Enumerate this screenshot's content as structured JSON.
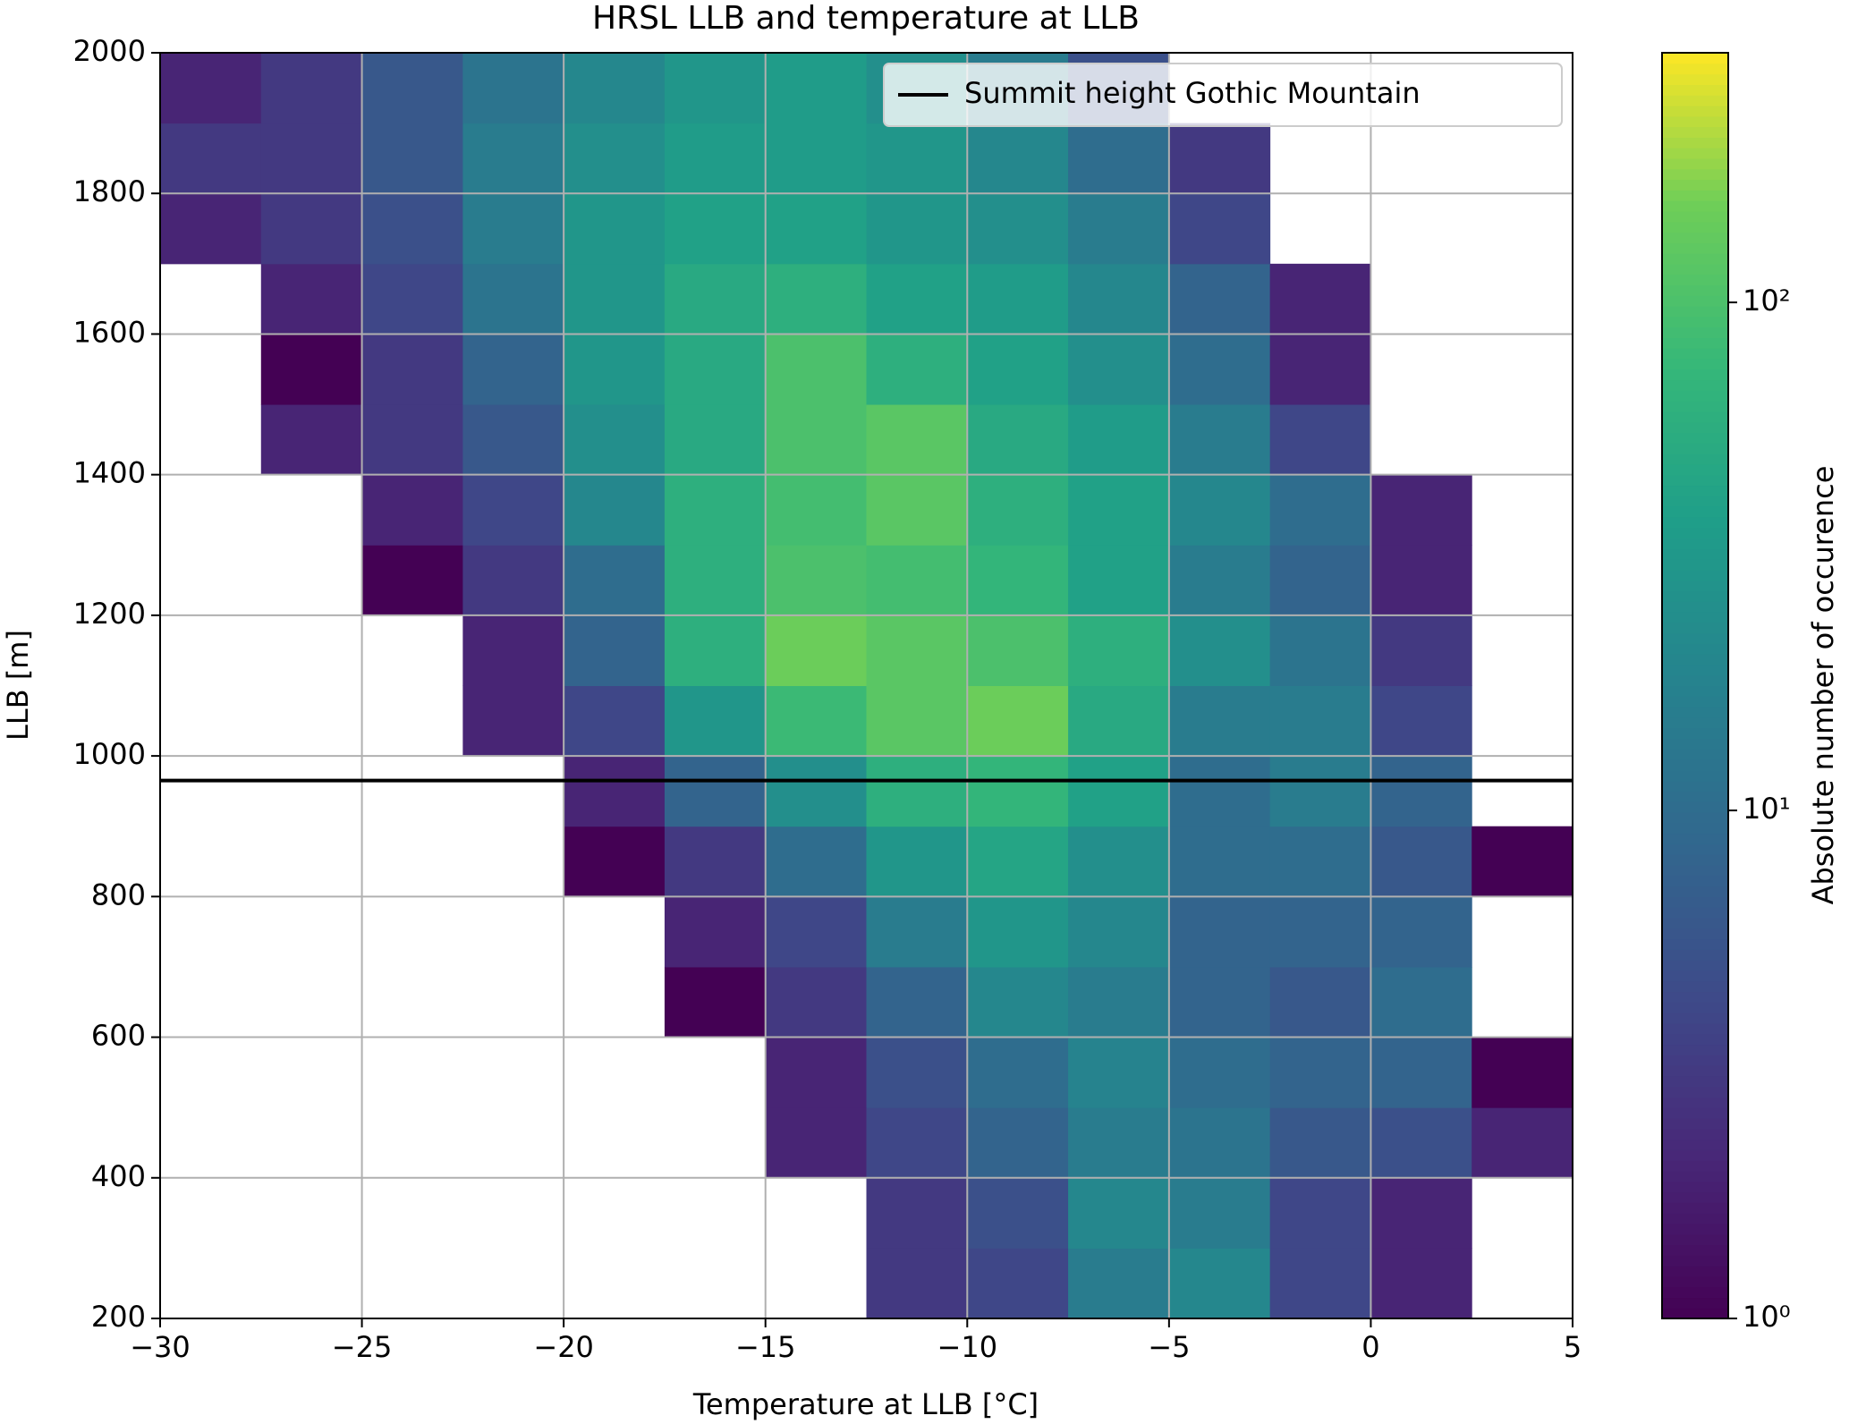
{
  "chart_data": {
    "type": "heatmap",
    "title": "HRSL LLB and temperature at LLB",
    "xlabel": "Temperature at LLB [°C]",
    "ylabel": "LLB [m]",
    "colorbar_label": "Absolute number of occurence",
    "colormap": "viridis",
    "color_log": true,
    "clim": [
      1,
      310
    ],
    "cticks": [
      {
        "value": 1,
        "label": "10⁰"
      },
      {
        "value": 10,
        "label": "10¹"
      },
      {
        "value": 100,
        "label": "10²"
      }
    ],
    "xlim": [
      -30,
      5
    ],
    "ylim": [
      200,
      2000
    ],
    "xticks": [
      {
        "value": -30,
        "label": "−30"
      },
      {
        "value": -25,
        "label": "−25"
      },
      {
        "value": -20,
        "label": "−20"
      },
      {
        "value": -15,
        "label": "−15"
      },
      {
        "value": -10,
        "label": "−10"
      },
      {
        "value": -5,
        "label": "−5"
      },
      0,
      5
    ],
    "yticks": [
      200,
      400,
      600,
      800,
      1000,
      1200,
      1400,
      1600,
      1800,
      2000
    ],
    "grid": true,
    "legend": "upper right",
    "x_bins": [
      -30,
      -27.5,
      -25,
      -22.5,
      -20,
      -17.5,
      -15,
      -12.5,
      -10,
      -7.5,
      -5,
      -2.5,
      0,
      2.5,
      5
    ],
    "y_bins": [
      200,
      300,
      400,
      500,
      600,
      700,
      800,
      900,
      1000,
      1100,
      1200,
      1300,
      1400,
      1500,
      1600,
      1700,
      1800,
      1900,
      2000
    ],
    "values": [
      [
        null,
        null,
        null,
        null,
        null,
        null,
        null,
        3,
        4,
        15,
        20,
        4,
        2,
        null
      ],
      [
        null,
        null,
        null,
        null,
        null,
        null,
        null,
        3,
        5,
        20,
        15,
        4,
        2,
        null
      ],
      [
        null,
        null,
        null,
        null,
        null,
        null,
        2,
        4,
        8,
        15,
        12,
        6,
        5,
        2
      ],
      [
        null,
        null,
        null,
        null,
        null,
        null,
        2,
        5,
        10,
        18,
        10,
        8,
        8,
        1
      ],
      [
        null,
        null,
        null,
        null,
        null,
        1,
        3,
        8,
        20,
        15,
        8,
        6,
        10,
        null
      ],
      [
        null,
        null,
        null,
        null,
        null,
        2,
        4,
        15,
        30,
        20,
        8,
        8,
        8,
        null
      ],
      [
        null,
        null,
        null,
        null,
        1,
        3,
        10,
        30,
        45,
        25,
        10,
        10,
        6,
        1
      ],
      [
        null,
        null,
        null,
        null,
        2,
        8,
        25,
        60,
        70,
        40,
        10,
        15,
        8,
        null
      ],
      [
        null,
        null,
        null,
        2,
        4,
        30,
        80,
        120,
        150,
        50,
        15,
        15,
        4,
        null
      ],
      [
        null,
        null,
        null,
        2,
        8,
        60,
        150,
        120,
        100,
        60,
        25,
        12,
        3,
        null
      ],
      [
        null,
        null,
        1,
        3,
        10,
        60,
        100,
        90,
        70,
        40,
        15,
        8,
        2,
        null
      ],
      [
        null,
        null,
        2,
        4,
        20,
        60,
        90,
        120,
        60,
        40,
        20,
        10,
        2,
        null
      ],
      [
        null,
        2,
        3,
        6,
        25,
        50,
        100,
        120,
        50,
        35,
        15,
        4,
        null,
        null
      ],
      [
        null,
        1,
        3,
        8,
        30,
        50,
        100,
        60,
        40,
        25,
        10,
        2,
        null,
        null
      ],
      [
        null,
        2,
        4,
        12,
        30,
        50,
        60,
        40,
        35,
        20,
        8,
        2,
        null,
        null
      ],
      [
        2,
        3,
        5,
        15,
        30,
        40,
        40,
        30,
        25,
        15,
        4,
        null,
        null,
        null
      ],
      [
        3,
        3,
        6,
        15,
        25,
        35,
        35,
        30,
        20,
        10,
        3,
        null,
        null,
        null
      ],
      [
        2,
        3,
        6,
        12,
        20,
        30,
        35,
        25,
        15,
        5,
        null,
        null,
        null,
        null
      ]
    ],
    "lines": [
      {
        "name": "Summit height Gothic Mountain",
        "y": 965,
        "color": "#000000"
      }
    ]
  }
}
